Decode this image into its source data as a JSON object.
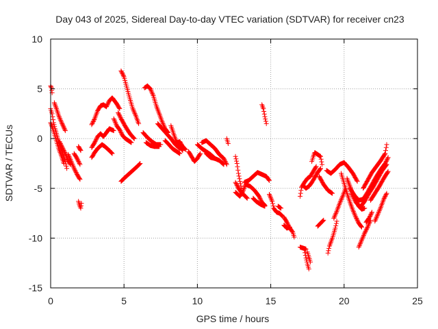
{
  "chart_data": {
    "type": "scatter",
    "title": "Day 043 of 2025, Sidereal Day-to-day VTEC variation (SDTVAR) for receiver cn23",
    "xlabel": "GPS time / hours",
    "ylabel": "SDTVAR / TECUs",
    "xlim": [
      0,
      25
    ],
    "ylim": [
      -15,
      10
    ],
    "xticks": [
      "0",
      "5",
      "10",
      "15",
      "20",
      "25"
    ],
    "yticks": [
      "-15",
      "-10",
      "-5",
      "0",
      "5",
      "10"
    ],
    "grid": true,
    "marker": "+",
    "color": "#ff0000",
    "segments": [
      [
        [
          0.0,
          5.3
        ],
        [
          0.05,
          5.1
        ],
        [
          0.1,
          4.6
        ]
      ],
      [
        [
          0.0,
          3.0
        ],
        [
          0.1,
          2.5
        ],
        [
          0.2,
          1.6
        ],
        [
          0.3,
          1.0
        ],
        [
          0.45,
          0.2
        ],
        [
          0.6,
          -0.6
        ],
        [
          0.8,
          -1.4
        ],
        [
          1.0,
          -2.3
        ],
        [
          1.1,
          -3.0
        ]
      ],
      [
        [
          0.0,
          1.6
        ],
        [
          0.15,
          1.0
        ],
        [
          0.35,
          0.0
        ],
        [
          0.55,
          -1.0
        ],
        [
          0.75,
          -1.8
        ],
        [
          0.9,
          -2.5
        ]
      ],
      [
        [
          0.25,
          3.6
        ],
        [
          0.4,
          3.0
        ],
        [
          0.55,
          2.3
        ],
        [
          0.75,
          1.6
        ],
        [
          1.0,
          0.8
        ]
      ],
      [
        [
          0.6,
          -0.3
        ],
        [
          0.8,
          -0.9
        ],
        [
          1.0,
          -1.5
        ],
        [
          1.2,
          -2.2
        ],
        [
          1.35,
          -2.6
        ]
      ],
      [
        [
          1.2,
          -1.6
        ],
        [
          1.4,
          -2.3
        ],
        [
          1.6,
          -3.0
        ],
        [
          1.8,
          -3.6
        ],
        [
          2.0,
          -4.1
        ]
      ],
      [
        [
          1.6,
          -1.5
        ],
        [
          1.8,
          -2.0
        ],
        [
          2.0,
          -2.6
        ]
      ],
      [
        [
          1.9,
          -0.8
        ],
        [
          2.05,
          -1.2
        ]
      ],
      [
        [
          1.9,
          -6.3
        ],
        [
          1.95,
          -6.6
        ],
        [
          2.05,
          -7.0
        ],
        [
          2.1,
          -6.5
        ]
      ],
      [
        [
          2.8,
          1.4
        ],
        [
          3.0,
          2.0
        ],
        [
          3.2,
          2.8
        ],
        [
          3.4,
          3.3
        ],
        [
          3.6,
          3.4
        ],
        [
          3.8,
          3.2
        ],
        [
          4.0,
          3.8
        ],
        [
          4.2,
          4.1
        ],
        [
          4.5,
          3.5
        ],
        [
          4.7,
          3.0
        ]
      ],
      [
        [
          2.8,
          -0.9
        ],
        [
          3.0,
          -0.4
        ],
        [
          3.2,
          0.2
        ],
        [
          3.4,
          0.5
        ],
        [
          3.6,
          0.2
        ],
        [
          3.8,
          0.6
        ],
        [
          4.0,
          1.0
        ],
        [
          4.3,
          0.8
        ]
      ],
      [
        [
          2.8,
          -1.9
        ],
        [
          3.0,
          -1.4
        ],
        [
          3.2,
          -1.0
        ],
        [
          3.5,
          -0.6
        ],
        [
          3.7,
          -0.8
        ],
        [
          4.0,
          -1.2
        ],
        [
          4.2,
          -1.5
        ]
      ],
      [
        [
          4.3,
          2.0
        ],
        [
          4.5,
          1.3
        ],
        [
          4.7,
          0.9
        ],
        [
          4.9,
          0.3
        ],
        [
          5.1,
          0.0
        ],
        [
          5.3,
          -0.2
        ],
        [
          5.5,
          -0.4
        ]
      ],
      [
        [
          4.8,
          6.8
        ],
        [
          5.0,
          6.2
        ],
        [
          5.2,
          5.1
        ],
        [
          5.4,
          4.0
        ],
        [
          5.6,
          3.0
        ],
        [
          5.8,
          2.3
        ],
        [
          6.0,
          1.5
        ]
      ],
      [
        [
          4.6,
          2.6
        ],
        [
          4.8,
          2.0
        ],
        [
          5.1,
          1.2
        ],
        [
          5.4,
          0.5
        ],
        [
          5.7,
          0.0
        ]
      ],
      [
        [
          4.8,
          -4.3
        ],
        [
          5.0,
          -4.0
        ],
        [
          5.3,
          -3.6
        ],
        [
          5.6,
          -3.2
        ],
        [
          5.9,
          -2.8
        ],
        [
          6.1,
          -2.5
        ]
      ],
      [
        [
          6.4,
          5.1
        ],
        [
          6.6,
          5.3
        ],
        [
          6.8,
          5.0
        ],
        [
          7.0,
          4.3
        ],
        [
          7.2,
          3.3
        ],
        [
          7.4,
          2.5
        ],
        [
          7.6,
          1.7
        ],
        [
          7.8,
          1.0
        ],
        [
          8.0,
          0.6
        ]
      ],
      [
        [
          6.3,
          0.6
        ],
        [
          6.6,
          0.1
        ],
        [
          6.9,
          -0.3
        ],
        [
          7.2,
          -0.6
        ],
        [
          7.5,
          -0.6
        ]
      ],
      [
        [
          6.5,
          -0.4
        ],
        [
          6.8,
          -0.7
        ],
        [
          7.1,
          -0.8
        ],
        [
          7.4,
          -0.8
        ]
      ],
      [
        [
          7.3,
          1.5
        ],
        [
          7.6,
          1.0
        ],
        [
          7.9,
          0.5
        ],
        [
          8.2,
          0.0
        ],
        [
          8.5,
          -0.6
        ],
        [
          8.8,
          -1.0
        ]
      ],
      [
        [
          7.8,
          -0.2
        ],
        [
          8.0,
          -0.5
        ],
        [
          8.3,
          -1.0
        ],
        [
          8.5,
          -1.2
        ],
        [
          8.8,
          -1.5
        ]
      ],
      [
        [
          8.2,
          1.3
        ],
        [
          8.4,
          0.4
        ],
        [
          8.6,
          -0.4
        ],
        [
          8.8,
          -0.8
        ],
        [
          9.0,
          -1.2
        ]
      ],
      [
        [
          8.5,
          -0.5
        ],
        [
          8.8,
          -0.3
        ],
        [
          9.0,
          -0.8
        ],
        [
          9.2,
          -1.1
        ]
      ],
      [
        [
          9.4,
          -1.3
        ],
        [
          9.6,
          -1.8
        ],
        [
          9.8,
          -2.3
        ],
        [
          10.0,
          -2.0
        ],
        [
          10.2,
          -1.5
        ]
      ],
      [
        [
          10.0,
          -0.6
        ],
        [
          10.3,
          -1.0
        ],
        [
          10.6,
          -1.3
        ],
        [
          10.9,
          -1.6
        ],
        [
          11.2,
          -2.0
        ]
      ],
      [
        [
          10.3,
          -0.4
        ],
        [
          10.6,
          -0.2
        ],
        [
          10.9,
          -0.6
        ],
        [
          11.2,
          -1.0
        ],
        [
          11.5,
          -1.6
        ],
        [
          11.8,
          -2.0
        ],
        [
          12.0,
          -2.6
        ]
      ],
      [
        [
          10.6,
          -1.5
        ],
        [
          10.9,
          -1.9
        ],
        [
          11.2,
          -2.0
        ],
        [
          11.5,
          -2.2
        ],
        [
          11.8,
          -2.6
        ]
      ],
      [
        [
          12.0,
          0.0
        ],
        [
          12.1,
          -0.5
        ]
      ],
      [
        [
          12.6,
          -1.8
        ],
        [
          12.7,
          -2.5
        ],
        [
          12.8,
          -3.5
        ],
        [
          12.9,
          -4.3
        ],
        [
          13.0,
          -5.0
        ]
      ],
      [
        [
          12.6,
          -4.4
        ],
        [
          12.8,
          -5.0
        ],
        [
          13.0,
          -5.4
        ],
        [
          13.2,
          -5.7
        ],
        [
          13.4,
          -6.0
        ]
      ],
      [
        [
          12.6,
          -5.4
        ],
        [
          12.9,
          -5.8
        ],
        [
          13.1,
          -5.3
        ],
        [
          13.3,
          -4.6
        ],
        [
          13.6,
          -4.8
        ],
        [
          13.9,
          -5.2
        ],
        [
          14.2,
          -5.8
        ],
        [
          14.4,
          -6.4
        ],
        [
          14.6,
          -6.7
        ]
      ],
      [
        [
          13.2,
          -4.4
        ],
        [
          13.5,
          -4.2
        ],
        [
          13.8,
          -3.8
        ],
        [
          14.1,
          -3.4
        ],
        [
          14.4,
          -3.6
        ],
        [
          14.7,
          -3.8
        ],
        [
          14.9,
          -4.2
        ]
      ],
      [
        [
          13.8,
          -6.0
        ],
        [
          14.0,
          -6.3
        ],
        [
          14.3,
          -6.6
        ],
        [
          14.6,
          -6.8
        ]
      ],
      [
        [
          14.4,
          3.4
        ],
        [
          14.5,
          3.0
        ],
        [
          14.6,
          2.2
        ],
        [
          14.7,
          1.5
        ]
      ],
      [
        [
          14.9,
          -5.6
        ],
        [
          15.1,
          -6.3
        ],
        [
          15.2,
          -7.0
        ],
        [
          15.4,
          -7.4
        ],
        [
          15.6,
          -7.5
        ],
        [
          15.8,
          -7.8
        ]
      ],
      [
        [
          15.5,
          -6.8
        ],
        [
          15.7,
          -7.0
        ]
      ],
      [
        [
          15.9,
          -7.9
        ],
        [
          16.1,
          -8.4
        ],
        [
          16.3,
          -9.0
        ],
        [
          16.5,
          -9.4
        ],
        [
          16.6,
          -9.9
        ]
      ],
      [
        [
          15.9,
          -8.7
        ],
        [
          16.1,
          -9.0
        ],
        [
          16.3,
          -8.9
        ]
      ],
      [
        [
          17.0,
          -10.9
        ],
        [
          17.2,
          -11.0
        ],
        [
          17.4,
          -11.1
        ]
      ],
      [
        [
          17.3,
          -11.2
        ],
        [
          17.4,
          -12.0
        ],
        [
          17.5,
          -12.6
        ],
        [
          17.6,
          -13.1
        ]
      ],
      [
        [
          17.5,
          -11.4
        ],
        [
          17.6,
          -11.9
        ],
        [
          17.7,
          -12.4
        ]
      ],
      [
        [
          17.0,
          -5.8
        ],
        [
          17.1,
          -4.9
        ],
        [
          17.3,
          -4.4
        ],
        [
          17.5,
          -4.0
        ],
        [
          17.7,
          -3.8
        ],
        [
          17.9,
          -3.3
        ],
        [
          18.1,
          -2.8
        ]
      ],
      [
        [
          17.2,
          -4.7
        ],
        [
          17.4,
          -5.0
        ],
        [
          17.6,
          -4.8
        ],
        [
          17.8,
          -4.4
        ],
        [
          18.0,
          -3.9
        ],
        [
          18.2,
          -3.4
        ],
        [
          18.4,
          -3.0
        ]
      ],
      [
        [
          17.8,
          -2.3
        ],
        [
          17.9,
          -1.8
        ],
        [
          18.0,
          -1.4
        ],
        [
          18.2,
          -1.6
        ],
        [
          18.4,
          -1.8
        ],
        [
          18.5,
          -2.6
        ]
      ],
      [
        [
          18.3,
          -3.8
        ],
        [
          18.6,
          -4.6
        ],
        [
          18.9,
          -5.2
        ],
        [
          19.2,
          -5.5
        ]
      ],
      [
        [
          18.2,
          -8.8
        ],
        [
          18.4,
          -8.5
        ],
        [
          18.6,
          -8.2
        ]
      ],
      [
        [
          18.9,
          -11.5
        ],
        [
          19.0,
          -10.8
        ],
        [
          19.2,
          -10.0
        ],
        [
          19.4,
          -9.0
        ],
        [
          19.5,
          -8.3
        ]
      ],
      [
        [
          18.8,
          -3.2
        ],
        [
          19.1,
          -3.5
        ],
        [
          19.4,
          -3.1
        ],
        [
          19.7,
          -2.6
        ],
        [
          20.0,
          -2.4
        ],
        [
          20.3,
          -2.9
        ],
        [
          20.6,
          -3.5
        ],
        [
          20.9,
          -4.3
        ]
      ],
      [
        [
          19.3,
          -8.0
        ],
        [
          19.5,
          -7.3
        ],
        [
          19.7,
          -6.5
        ],
        [
          19.9,
          -5.8
        ],
        [
          20.1,
          -5.0
        ]
      ],
      [
        [
          19.8,
          -3.5
        ],
        [
          20.0,
          -4.5
        ],
        [
          20.2,
          -5.5
        ],
        [
          20.4,
          -6.4
        ],
        [
          20.6,
          -7.2
        ],
        [
          20.8,
          -7.9
        ],
        [
          21.0,
          -8.5
        ],
        [
          21.2,
          -8.9
        ]
      ],
      [
        [
          20.2,
          -4.0
        ],
        [
          20.4,
          -4.8
        ],
        [
          20.6,
          -5.6
        ],
        [
          20.8,
          -6.2
        ],
        [
          21.0,
          -6.8
        ],
        [
          21.2,
          -7.1
        ],
        [
          21.4,
          -7.0
        ]
      ],
      [
        [
          20.4,
          -5.0
        ],
        [
          20.7,
          -5.7
        ],
        [
          21.0,
          -6.2
        ],
        [
          21.3,
          -6.1
        ],
        [
          21.6,
          -5.4
        ],
        [
          21.9,
          -4.6
        ],
        [
          22.2,
          -3.8
        ],
        [
          22.5,
          -3.1
        ],
        [
          22.8,
          -2.5
        ],
        [
          23.0,
          -1.9
        ]
      ],
      [
        [
          20.5,
          -5.5
        ],
        [
          20.8,
          -6.4
        ],
        [
          21.1,
          -6.9
        ],
        [
          21.4,
          -6.3
        ],
        [
          21.7,
          -5.5
        ],
        [
          22.0,
          -4.8
        ],
        [
          22.3,
          -4.0
        ],
        [
          22.6,
          -3.2
        ],
        [
          22.9,
          -2.6
        ]
      ],
      [
        [
          21.0,
          -10.9
        ],
        [
          21.2,
          -10.2
        ],
        [
          21.4,
          -9.5
        ],
        [
          21.6,
          -8.9
        ],
        [
          21.8,
          -8.2
        ]
      ],
      [
        [
          21.3,
          -5.0
        ],
        [
          21.6,
          -4.2
        ],
        [
          21.9,
          -3.4
        ],
        [
          22.2,
          -2.8
        ],
        [
          22.5,
          -2.2
        ],
        [
          22.8,
          -1.5
        ],
        [
          22.9,
          -0.6
        ]
      ],
      [
        [
          21.8,
          -6.2
        ],
        [
          22.1,
          -5.5
        ],
        [
          22.4,
          -4.8
        ],
        [
          22.7,
          -4.0
        ],
        [
          23.0,
          -3.3
        ]
      ],
      [
        [
          22.1,
          -8.3
        ],
        [
          22.3,
          -7.6
        ],
        [
          22.5,
          -6.9
        ],
        [
          22.7,
          -6.1
        ],
        [
          22.9,
          -5.5
        ]
      ],
      [
        [
          21.5,
          -8.4
        ],
        [
          21.7,
          -8.0
        ],
        [
          21.9,
          -7.4
        ]
      ]
    ]
  }
}
